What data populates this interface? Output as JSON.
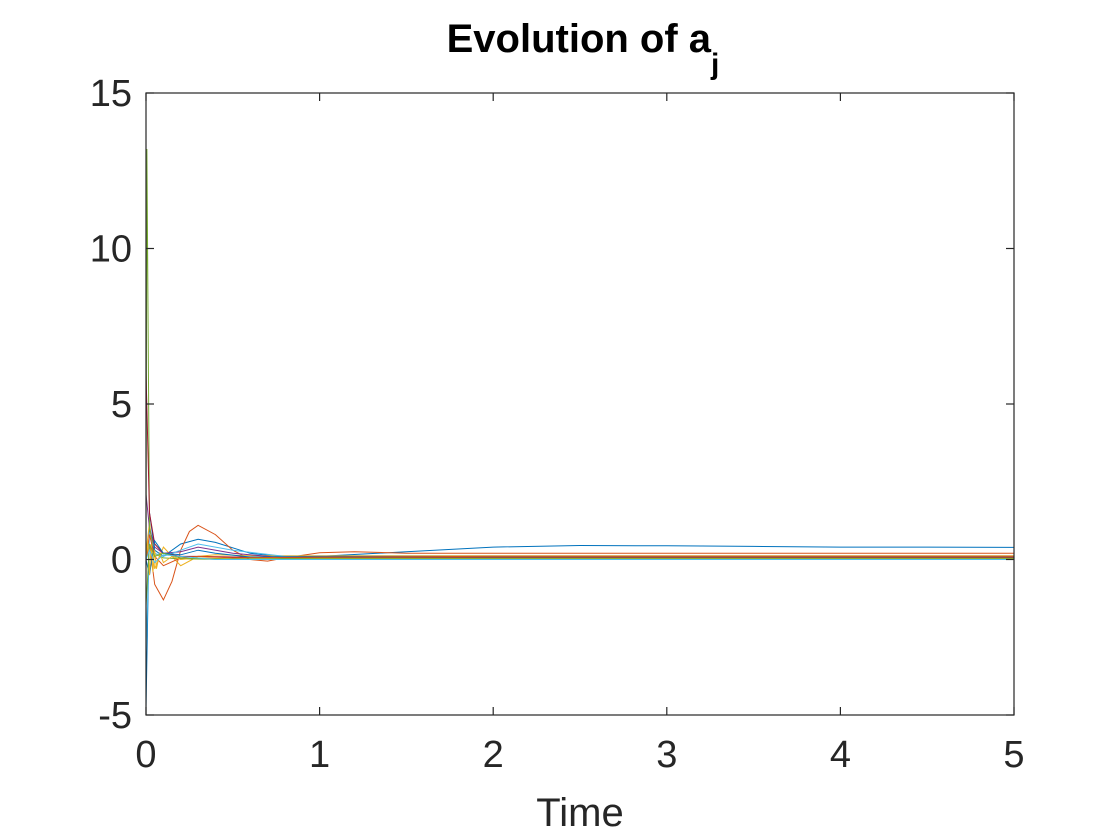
{
  "chart_data": {
    "type": "line",
    "title": "Evolution of a",
    "title_subscript": "j",
    "xlabel": "Time",
    "ylabel": "",
    "xlim": [
      0,
      5
    ],
    "ylim": [
      -5,
      15
    ],
    "xticks": [
      "0",
      "1",
      "2",
      "3",
      "4",
      "5"
    ],
    "yticks": [
      "-5",
      "0",
      "5",
      "10",
      "15"
    ],
    "grid": false,
    "legend": false,
    "series": [
      {
        "color": "#0072BD",
        "x": [
          0,
          0.02,
          0.05,
          0.1,
          0.2,
          0.3,
          0.4,
          0.6,
          0.8,
          1.0,
          1.5,
          2.0,
          2.5,
          3.0,
          3.5,
          4.0,
          4.5,
          5.0
        ],
        "y": [
          -4.8,
          1.5,
          0.3,
          0.1,
          0.5,
          0.65,
          0.55,
          0.2,
          0.08,
          0.1,
          0.25,
          0.4,
          0.45,
          0.44,
          0.42,
          0.4,
          0.4,
          0.39
        ]
      },
      {
        "color": "#D95319",
        "x": [
          0,
          0.02,
          0.05,
          0.1,
          0.15,
          0.2,
          0.25,
          0.3,
          0.4,
          0.5,
          0.6,
          0.7,
          0.8,
          1.0,
          1.2,
          1.5,
          2.0,
          3.0,
          4.0,
          5.0
        ],
        "y": [
          0,
          0.5,
          -0.8,
          -1.3,
          -0.7,
          0.3,
          0.9,
          1.1,
          0.8,
          0.3,
          0.0,
          -0.05,
          0.05,
          0.22,
          0.25,
          0.2,
          0.2,
          0.2,
          0.2,
          0.2
        ]
      },
      {
        "color": "#EDB120",
        "x": [
          0,
          0.02,
          0.05,
          0.1,
          0.2,
          0.3,
          0.4,
          0.6,
          1.0,
          2.0,
          3.0,
          4.0,
          5.0
        ],
        "y": [
          0.2,
          1.2,
          -0.3,
          0.4,
          -0.2,
          0.1,
          0.15,
          0.12,
          0.12,
          0.12,
          0.12,
          0.12,
          0.12
        ]
      },
      {
        "color": "#7E2F8E",
        "x": [
          0,
          0.02,
          0.05,
          0.1,
          0.2,
          0.3,
          0.5,
          0.8,
          1.0,
          2.0,
          3.0,
          4.0,
          5.0
        ],
        "y": [
          2.1,
          1.0,
          0.4,
          0.2,
          0.25,
          0.4,
          0.2,
          0.05,
          0.05,
          0.05,
          0.05,
          0.05,
          0.05
        ]
      },
      {
        "color": "#77AC30",
        "x": [
          0,
          0.005,
          0.02,
          0.05,
          0.1,
          0.2,
          0.4,
          1.0,
          2.0,
          3.0,
          4.0,
          5.0
        ],
        "y": [
          0,
          13.2,
          1.0,
          0.2,
          0.05,
          0.02,
          0.01,
          0.02,
          0.03,
          0.03,
          0.03,
          0.03
        ]
      },
      {
        "color": "#4DBEEE",
        "x": [
          0,
          0.02,
          0.05,
          0.1,
          0.2,
          0.3,
          0.5,
          0.8,
          1.0,
          2.0,
          3.0,
          4.0,
          5.0
        ],
        "y": [
          -3.0,
          0.8,
          0.2,
          0.1,
          0.3,
          0.5,
          0.3,
          0.1,
          0.1,
          0.08,
          0.08,
          0.08,
          0.08
        ]
      },
      {
        "color": "#A2142F",
        "x": [
          0,
          0.02,
          0.05,
          0.1,
          0.2,
          0.3,
          0.5,
          1.0,
          2.0,
          3.0,
          4.0,
          5.0
        ],
        "y": [
          6.0,
          1.5,
          0.5,
          0.2,
          0.1,
          0.1,
          0.08,
          0.06,
          0.06,
          0.06,
          0.06,
          0.06
        ]
      },
      {
        "color": "#0072BD",
        "x": [
          0,
          0.02,
          0.05,
          0.1,
          0.2,
          0.3,
          0.4,
          0.6,
          1.0,
          2.0,
          3.0,
          4.0,
          5.0
        ],
        "y": [
          0,
          -0.5,
          0.6,
          0.2,
          0.15,
          0.3,
          0.2,
          0.08,
          0.1,
          0.1,
          0.1,
          0.1,
          0.1
        ]
      },
      {
        "color": "#D95319",
        "x": [
          0,
          0.02,
          0.05,
          0.1,
          0.2,
          0.3,
          0.5,
          1.0,
          2.0,
          3.0,
          4.0,
          5.0
        ],
        "y": [
          0,
          0.8,
          0.1,
          -0.2,
          0.05,
          0.1,
          0.05,
          0.08,
          0.1,
          0.1,
          0.1,
          0.1
        ]
      },
      {
        "color": "#EDB120",
        "x": [
          0,
          0.01,
          0.02,
          0.03,
          0.04,
          0.05,
          0.06,
          0.08,
          0.1,
          0.15,
          0.2,
          0.3,
          0.5,
          1.0,
          2.0,
          3.0,
          4.0,
          5.0
        ],
        "y": [
          0,
          0.6,
          -0.5,
          0.5,
          -0.4,
          0.3,
          -0.3,
          0.2,
          -0.1,
          0.1,
          0.0,
          0.05,
          0.02,
          0.02,
          0.02,
          0.02,
          0.02,
          0.02
        ]
      },
      {
        "color": "#77AC30",
        "x": [
          0,
          0.02,
          0.05,
          0.1,
          0.2,
          0.3,
          0.5,
          1.0,
          2.0,
          3.0,
          4.0,
          5.0
        ],
        "y": [
          -1.5,
          0.5,
          0.1,
          0.2,
          0.05,
          0.02,
          0.02,
          0.04,
          0.04,
          0.04,
          0.04,
          0.04
        ]
      },
      {
        "color": "#4DBEEE",
        "x": [
          0,
          0.02,
          0.05,
          0.1,
          0.2,
          0.4,
          1.0,
          2.0,
          3.0,
          4.0,
          5.0
        ],
        "y": [
          0,
          0.3,
          -0.1,
          0.15,
          0.1,
          0.0,
          0.0,
          0.0,
          0.0,
          0.0,
          0.0
        ]
      }
    ]
  }
}
